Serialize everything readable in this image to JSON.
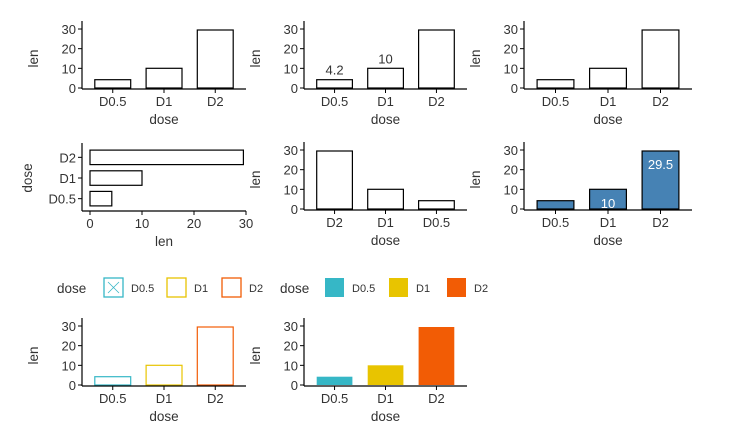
{
  "colors": {
    "outline": "#000000",
    "steelblue": "#4682B4",
    "jco": [
      "#36B7C6",
      "#E8C400",
      "#F25C05"
    ],
    "text": "#333333",
    "axis": "#000000"
  },
  "legends": [
    {
      "title": "dose",
      "style": "outline",
      "items": [
        "D0.5",
        "D1",
        "D2"
      ]
    },
    {
      "title": "dose",
      "style": "fill",
      "items": [
        "D0.5",
        "D1",
        "D2"
      ]
    }
  ],
  "chart_data": [
    {
      "type": "bar",
      "orientation": "vertical",
      "categories": [
        "D0.5",
        "D1",
        "D2"
      ],
      "values": [
        4.2,
        10,
        29.5
      ],
      "xlabel": "dose",
      "ylabel": "len",
      "ylim": [
        0,
        30
      ],
      "yticks": [
        0,
        10,
        20,
        30
      ],
      "fill": "none",
      "stroke": "outline",
      "labels": []
    },
    {
      "type": "bar",
      "orientation": "vertical",
      "categories": [
        "D0.5",
        "D1",
        "D2"
      ],
      "values": [
        4.2,
        10,
        29.5
      ],
      "xlabel": "dose",
      "ylabel": "len",
      "ylim": [
        0,
        30
      ],
      "yticks": [
        0,
        10,
        20,
        30
      ],
      "fill": "none",
      "stroke": "outline",
      "labels": [
        {
          "index": 0,
          "text": "4.2",
          "pos": "above"
        },
        {
          "index": 1,
          "text": "10",
          "pos": "above"
        }
      ]
    },
    {
      "type": "bar",
      "orientation": "vertical",
      "categories": [
        "D0.5",
        "D1",
        "D2"
      ],
      "values": [
        4.2,
        10,
        29.5
      ],
      "xlabel": "dose",
      "ylabel": "len",
      "ylim": [
        0,
        30
      ],
      "yticks": [
        0,
        10,
        20,
        30
      ],
      "fill": "none",
      "stroke": "outline",
      "labels": []
    },
    {
      "type": "bar",
      "orientation": "horizontal",
      "categories": [
        "D0.5",
        "D1",
        "D2"
      ],
      "values": [
        4.2,
        10,
        29.5
      ],
      "xlabel": "len",
      "ylabel": "dose",
      "xlim": [
        0,
        30
      ],
      "xticks": [
        0,
        10,
        20,
        30
      ],
      "fill": "none",
      "stroke": "outline",
      "labels": []
    },
    {
      "type": "bar",
      "orientation": "vertical",
      "categories": [
        "D2",
        "D1",
        "D0.5"
      ],
      "values": [
        29.5,
        10,
        4.2
      ],
      "xlabel": "dose",
      "ylabel": "len",
      "ylim": [
        0,
        30
      ],
      "yticks": [
        0,
        10,
        20,
        30
      ],
      "fill": "none",
      "stroke": "outline",
      "labels": []
    },
    {
      "type": "bar",
      "orientation": "vertical",
      "categories": [
        "D0.5",
        "D1",
        "D2"
      ],
      "values": [
        4.2,
        10,
        29.5
      ],
      "xlabel": "dose",
      "ylabel": "len",
      "ylim": [
        0,
        30
      ],
      "yticks": [
        0,
        10,
        20,
        30
      ],
      "fill": "steelblue",
      "stroke": "outline",
      "labels": [
        {
          "index": 1,
          "text": "10",
          "pos": "inside-bottom"
        },
        {
          "index": 2,
          "text": "29.5",
          "pos": "inside-top"
        }
      ]
    },
    {
      "type": "bar",
      "orientation": "vertical",
      "categories": [
        "D0.5",
        "D1",
        "D2"
      ],
      "values": [
        4.2,
        10,
        29.5
      ],
      "xlabel": "dose",
      "ylabel": "len",
      "ylim": [
        0,
        30
      ],
      "yticks": [
        0,
        10,
        20,
        30
      ],
      "fill": "none",
      "stroke": "jco",
      "labels": []
    },
    {
      "type": "bar",
      "orientation": "vertical",
      "categories": [
        "D0.5",
        "D1",
        "D2"
      ],
      "values": [
        4.2,
        10,
        29.5
      ],
      "xlabel": "dose",
      "ylabel": "len",
      "ylim": [
        0,
        30
      ],
      "yticks": [
        0,
        10,
        20,
        30
      ],
      "fill": "jco",
      "stroke": "none",
      "labels": []
    }
  ]
}
